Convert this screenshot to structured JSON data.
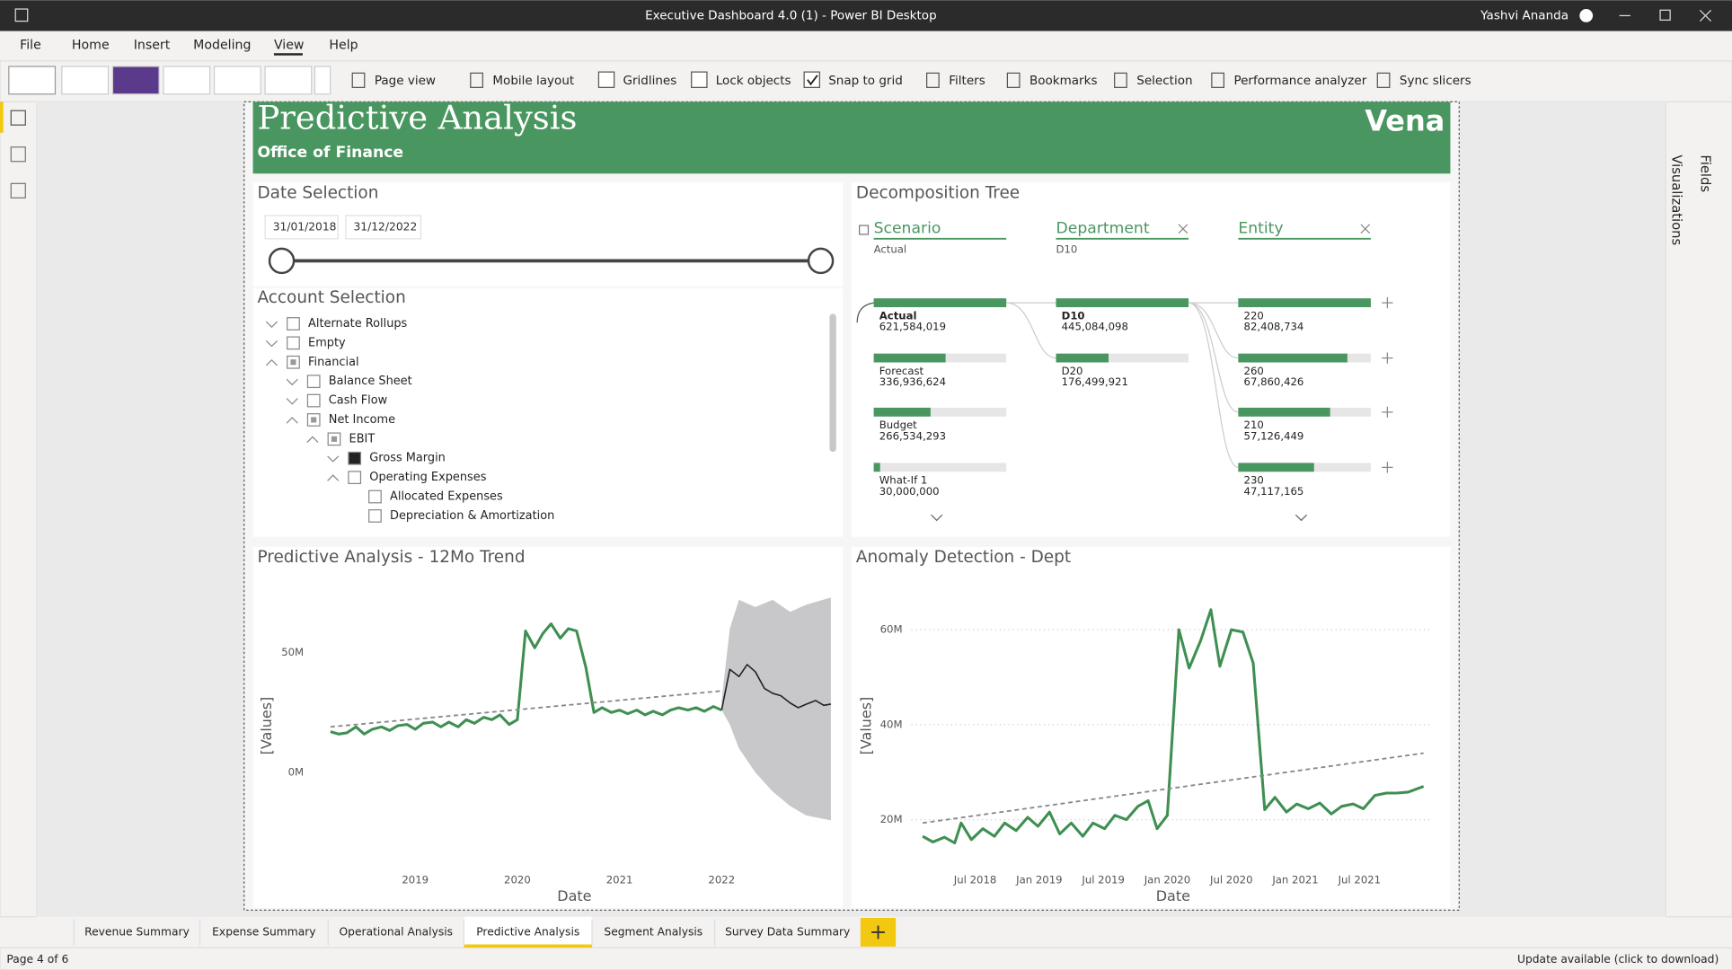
{
  "window": {
    "title": "Executive Dashboard 4.0 (1) - Power BI Desktop",
    "user": "Yashvi Ananda"
  },
  "menu": [
    {
      "label": "File"
    },
    {
      "label": "Home"
    },
    {
      "label": "Insert"
    },
    {
      "label": "Modeling"
    },
    {
      "label": "View",
      "active": true
    },
    {
      "label": "Help"
    }
  ],
  "ribbon": [
    {
      "label": "Page view",
      "icon": "page"
    },
    {
      "label": "Mobile layout",
      "icon": "phone"
    },
    {
      "label": "Gridlines",
      "icon": "check-off"
    },
    {
      "label": "Lock objects",
      "icon": "check-off"
    },
    {
      "label": "Snap to grid",
      "icon": "check-on"
    },
    {
      "label": "Filters",
      "icon": "filter"
    },
    {
      "label": "Bookmarks",
      "icon": "bookmark"
    },
    {
      "label": "Selection",
      "icon": "select"
    },
    {
      "label": "Performance analyzer",
      "icon": "perf"
    },
    {
      "label": "Sync slicers",
      "icon": "sync"
    }
  ],
  "panes": [
    "Visualizations",
    "Fields"
  ],
  "report": {
    "title": "Predictive Analysis",
    "subtitle": "Office of Finance",
    "logo": "Vena"
  },
  "date_slicer": {
    "title": "Date Selection",
    "start": "31/01/2018",
    "end": "31/12/2022"
  },
  "account_selection": {
    "title": "Account Selection",
    "items": [
      {
        "label": "Alternate Rollups",
        "level": 0,
        "state": "unchecked",
        "expand": "collapsed"
      },
      {
        "label": "Empty",
        "level": 0,
        "state": "unchecked",
        "expand": "collapsed"
      },
      {
        "label": "Financial",
        "level": 0,
        "state": "partial",
        "expand": "expanded"
      },
      {
        "label": "Balance Sheet",
        "level": 1,
        "state": "unchecked",
        "expand": "collapsed"
      },
      {
        "label": "Cash Flow",
        "level": 1,
        "state": "unchecked",
        "expand": "collapsed"
      },
      {
        "label": "Net Income",
        "level": 1,
        "state": "partial",
        "expand": "expanded"
      },
      {
        "label": "EBIT",
        "level": 2,
        "state": "partial",
        "expand": "expanded"
      },
      {
        "label": "Gross Margin",
        "level": 3,
        "state": "checked",
        "expand": "collapsed"
      },
      {
        "label": "Operating Expenses",
        "level": 3,
        "state": "unchecked",
        "expand": "expanded"
      },
      {
        "label": "Allocated Expenses",
        "level": 4,
        "state": "unchecked"
      },
      {
        "label": "Depreciation & Amortization",
        "level": 4,
        "state": "unchecked"
      }
    ]
  },
  "decomposition_tree": {
    "title": "Decomposition Tree",
    "columns": [
      {
        "name": "Scenario",
        "sub": "Actual",
        "locked": true,
        "nodes": [
          {
            "label": "Actual",
            "value": 621584019,
            "value_label": "621,584,019"
          },
          {
            "label": "Forecast",
            "value": 336936624,
            "value_label": "336,936,624"
          },
          {
            "label": "Budget",
            "value": 266534293,
            "value_label": "266,534,293"
          },
          {
            "label": "What-If 1",
            "value": 30000000,
            "value_label": "30,000,000"
          }
        ]
      },
      {
        "name": "Department",
        "sub": "D10",
        "nodes": [
          {
            "label": "D10",
            "value": 445084098,
            "value_label": "445,084,098"
          },
          {
            "label": "D20",
            "value": 176499921,
            "value_label": "176,499,921"
          }
        ]
      },
      {
        "name": "Entity",
        "nodes": [
          {
            "label": "220",
            "value": 82408734,
            "value_label": "82,408,734"
          },
          {
            "label": "260",
            "value": 67860426,
            "value_label": "67,860,426"
          },
          {
            "label": "210",
            "value": 57126449,
            "value_label": "57,126,449"
          },
          {
            "label": "230",
            "value": 47117165,
            "value_label": "47,117,165"
          }
        ]
      }
    ]
  },
  "chart_data": [
    {
      "type": "line",
      "title": "Predictive Analysis - 12Mo Trend",
      "x_label": "Date",
      "y_label": "[Values]",
      "xlim": [
        2017.53,
        2023.1
      ],
      "ylim": [
        -28,
        78
      ],
      "xticks": [
        2019,
        2020,
        2021,
        2022
      ],
      "yticks": [
        {
          "value": 0,
          "label": "0M"
        },
        {
          "value": 50,
          "label": "50M"
        }
      ],
      "grid": false,
      "band": {
        "color": "#c8c8cb",
        "x": [
          2022.0,
          2022.08,
          2022.17,
          2022.33,
          2022.5,
          2022.67,
          2022.83,
          2023.07
        ],
        "upper": [
          30,
          60,
          72,
          69,
          72,
          67,
          70,
          73
        ],
        "lower": [
          26,
          20,
          10,
          0,
          -8,
          -14,
          -18,
          -20
        ]
      },
      "series": [
        {
          "color": "#3f8f52",
          "width": 2.5,
          "x": [
            2018.17,
            2018.25,
            2018.33,
            2018.42,
            2018.5,
            2018.58,
            2018.67,
            2018.75,
            2018.83,
            2018.92,
            2019.0,
            2019.08,
            2019.17,
            2019.25,
            2019.33,
            2019.42,
            2019.5,
            2019.58,
            2019.67,
            2019.75,
            2019.83,
            2019.92,
            2020.0,
            2020.08,
            2020.17,
            2020.25,
            2020.33,
            2020.42,
            2020.5,
            2020.58,
            2020.67,
            2020.75,
            2020.83,
            2020.92,
            2021.0,
            2021.08,
            2021.17,
            2021.25,
            2021.33,
            2021.42,
            2021.5,
            2021.58,
            2021.67,
            2021.75,
            2021.83,
            2021.92,
            2022.0
          ],
          "values": [
            17,
            16,
            16.5,
            19,
            16,
            18,
            19,
            17.5,
            19.5,
            20,
            18,
            20.5,
            21,
            19,
            21,
            19,
            22,
            20.5,
            23,
            22,
            24,
            20,
            22,
            59,
            52,
            58,
            62,
            56,
            60,
            59,
            44,
            25,
            27,
            25,
            26,
            24.5,
            26,
            24,
            25.5,
            24,
            26,
            27,
            26,
            27,
            25.5,
            27.5,
            26
          ]
        },
        {
          "color": "#222222",
          "width": 1.3,
          "x": [
            2022.0,
            2022.08,
            2022.17,
            2022.25,
            2022.33,
            2022.42,
            2022.5,
            2022.58,
            2022.67,
            2022.75,
            2022.83,
            2022.92,
            2023.0,
            2023.07
          ],
          "values": [
            26,
            43,
            40,
            45,
            42,
            35,
            33,
            32,
            29,
            27,
            28.5,
            30,
            28,
            28.5
          ]
        },
        {
          "color": "#888888",
          "width": 1.5,
          "dash": true,
          "x": [
            2018.17,
            2022.0
          ],
          "values": [
            19,
            34
          ]
        }
      ]
    },
    {
      "type": "line",
      "title": "Anomaly Detection - Dept",
      "x_label": "Date",
      "y_label": "[Values]",
      "xlim": [
        2017.57,
        2022.14
      ],
      "ylim": [
        13.5,
        69.3
      ],
      "xticks": [
        {
          "value": 2018.5,
          "label": "Jul 2018"
        },
        {
          "value": 2019.0,
          "label": "Jan 2019"
        },
        {
          "value": 2019.5,
          "label": "Jul 2019"
        },
        {
          "value": 2020.0,
          "label": "Jan 2020"
        },
        {
          "value": 2020.5,
          "label": "Jul 2020"
        },
        {
          "value": 2021.0,
          "label": "Jan 2021"
        },
        {
          "value": 2021.5,
          "label": "Jul 2021"
        }
      ],
      "yticks": [
        {
          "value": 20,
          "label": "20M"
        },
        {
          "value": 40,
          "label": "40M"
        },
        {
          "value": 60,
          "label": "60M"
        }
      ],
      "grid": true,
      "series": [
        {
          "color": "#3f8f52",
          "width": 2.5,
          "x": [
            2018.09,
            2018.17,
            2018.26,
            2018.34,
            2018.39,
            2018.47,
            2018.56,
            2018.65,
            2018.73,
            2018.82,
            2018.91,
            2018.99,
            2019.08,
            2019.16,
            2019.25,
            2019.34,
            2019.42,
            2019.51,
            2019.59,
            2019.68,
            2019.77,
            2019.85,
            2019.92,
            2020.0,
            2020.09,
            2020.17,
            2020.26,
            2020.34,
            2020.41,
            2020.5,
            2020.59,
            2020.67,
            2020.76,
            2020.84,
            2020.93,
            2021.01,
            2021.1,
            2021.19,
            2021.28,
            2021.36,
            2021.45,
            2021.53,
            2021.62,
            2021.71,
            2021.79,
            2021.88,
            2022.0
          ],
          "values": [
            16.5,
            15.3,
            16.3,
            15.1,
            19.3,
            15.8,
            18.1,
            16.5,
            19.3,
            17.7,
            20.5,
            18.6,
            21.6,
            17.0,
            19.3,
            16.5,
            19.3,
            18.1,
            20.9,
            20.0,
            22.8,
            24.0,
            18.1,
            20.9,
            60,
            51.9,
            57.7,
            64.2,
            52.3,
            60,
            59.5,
            53.0,
            22.1,
            24.7,
            21.6,
            23.3,
            22.3,
            23.5,
            21.2,
            22.8,
            23.3,
            22.3,
            25.1,
            25.6,
            25.6,
            25.8,
            27.0
          ]
        },
        {
          "color": "#888888",
          "width": 1.5,
          "dash": true,
          "x": [
            2018.09,
            2022.0
          ],
          "values": [
            19.3,
            34.0
          ]
        }
      ]
    }
  ],
  "tabs": [
    {
      "label": "Revenue Summary"
    },
    {
      "label": "Expense Summary"
    },
    {
      "label": "Operational Analysis"
    },
    {
      "label": "Predictive Analysis",
      "active": true
    },
    {
      "label": "Segment Analysis"
    },
    {
      "label": "Survey Data Summary"
    }
  ],
  "status": {
    "page": "Page 4 of 6",
    "update": "Update available (click to download)"
  }
}
